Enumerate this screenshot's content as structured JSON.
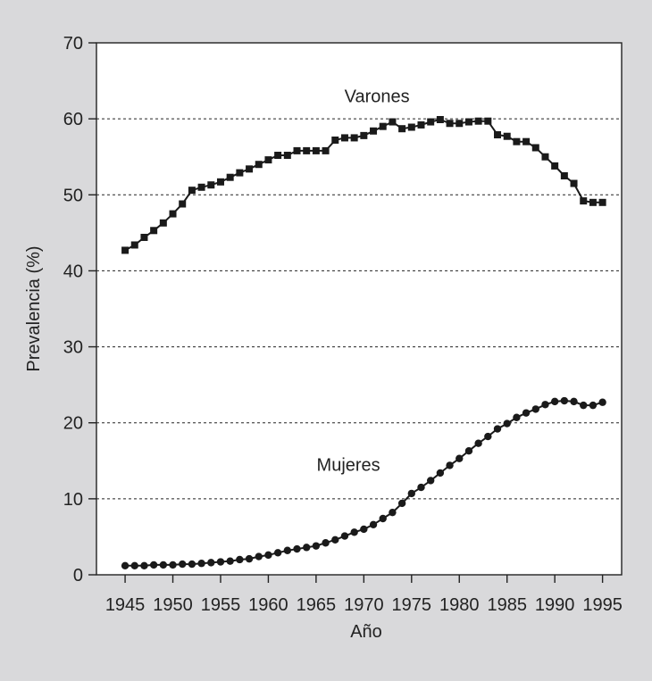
{
  "chart_data": {
    "type": "line",
    "title": "",
    "xlabel": "Año",
    "ylabel": "Prevalencia (%)",
    "xlim": [
      1942,
      1997
    ],
    "ylim": [
      0,
      70
    ],
    "xticks": [
      1945,
      1950,
      1955,
      1960,
      1965,
      1970,
      1975,
      1980,
      1985,
      1990,
      1995
    ],
    "yticks": [
      0,
      10,
      20,
      30,
      40,
      50,
      60,
      70
    ],
    "grid": "horizontal dashed",
    "legend": "inline labels",
    "x": [
      1945,
      1946,
      1947,
      1948,
      1949,
      1950,
      1951,
      1952,
      1953,
      1954,
      1955,
      1956,
      1957,
      1958,
      1959,
      1960,
      1961,
      1962,
      1963,
      1964,
      1965,
      1966,
      1967,
      1968,
      1969,
      1970,
      1971,
      1972,
      1973,
      1974,
      1975,
      1976,
      1977,
      1978,
      1979,
      1980,
      1981,
      1982,
      1983,
      1984,
      1985,
      1986,
      1987,
      1988,
      1989,
      1990,
      1991,
      1992,
      1993,
      1994,
      1995
    ],
    "series": [
      {
        "name": "Varones",
        "marker": "square",
        "values": [
          42.7,
          43.4,
          44.4,
          45.3,
          46.3,
          47.5,
          48.8,
          50.6,
          51.0,
          51.3,
          51.7,
          52.3,
          52.9,
          53.4,
          54.0,
          54.6,
          55.2,
          55.2,
          55.8,
          55.8,
          55.8,
          55.8,
          57.2,
          57.5,
          57.5,
          57.8,
          58.4,
          59.0,
          59.6,
          58.7,
          58.9,
          59.2,
          59.6,
          59.9,
          59.4,
          59.4,
          59.6,
          59.7,
          59.7,
          57.9,
          57.7,
          57.0,
          57.0,
          56.2,
          55.0,
          53.8,
          52.5,
          51.5,
          49.2,
          49.0,
          49.0
        ],
        "label_pos": {
          "x": 1977,
          "y": 63
        }
      },
      {
        "name": "Mujeres",
        "marker": "circle",
        "values": [
          1.2,
          1.2,
          1.2,
          1.3,
          1.3,
          1.3,
          1.4,
          1.4,
          1.5,
          1.6,
          1.7,
          1.8,
          2.0,
          2.1,
          2.4,
          2.6,
          2.9,
          3.2,
          3.4,
          3.6,
          3.8,
          4.2,
          4.6,
          5.1,
          5.6,
          6.0,
          6.6,
          7.4,
          8.2,
          9.4,
          10.7,
          11.5,
          12.4,
          13.4,
          14.4,
          15.3,
          16.3,
          17.3,
          18.2,
          19.2,
          19.9,
          20.7,
          21.3,
          21.8,
          22.4,
          22.8,
          22.9,
          22.8,
          22.3,
          22.3,
          22.7
        ],
        "label_pos": {
          "x": 1974,
          "y": 14.5
        }
      }
    ]
  }
}
